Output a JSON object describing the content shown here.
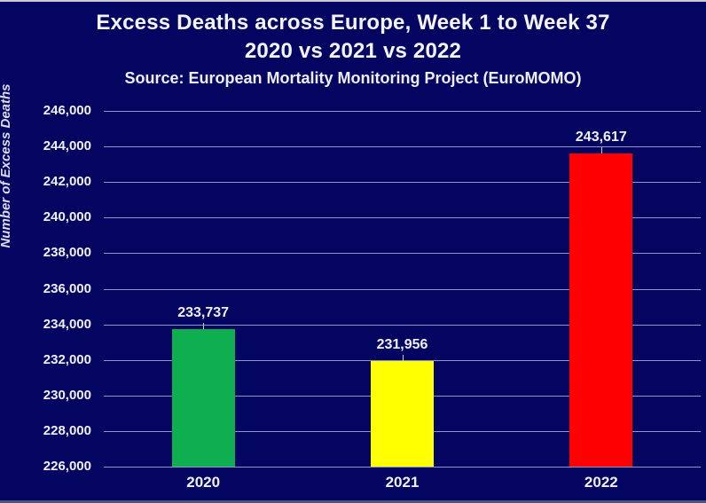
{
  "page": {
    "title_line1": "Excess Deaths across Europe, Week 1 to Week 37",
    "title_line2": "2020 vs 2021 vs 2022",
    "source_line": "Source: European Mortality Monitoring Project (EuroMOMO)"
  },
  "chart_data": {
    "type": "bar",
    "title": "Excess Deaths across Europe, Week 1 to Week 37",
    "subtitle": "2020 vs 2021 vs 2022",
    "source": "Source: European Mortality Monitoring Project (EuroMOMO)",
    "categories": [
      "2020",
      "2021",
      "2022"
    ],
    "values": [
      233737,
      231956,
      243617
    ],
    "value_labels": [
      "233,737",
      "231,956",
      "243,617"
    ],
    "bar_colors": [
      "#0FAE51",
      "#FFFF00",
      "#FF0000"
    ],
    "xlabel": "",
    "ylabel": "Number of Excess Deaths",
    "ylim": [
      226000,
      246000
    ],
    "ytick_step": 2000,
    "ytick_labels": [
      "226,000",
      "228,000",
      "230,000",
      "232,000",
      "234,000",
      "236,000",
      "238,000",
      "240,000",
      "242,000",
      "244,000",
      "246,000"
    ],
    "grid": true,
    "legend": false,
    "colors": {
      "background": "#030560",
      "gridline": "#8E97C4",
      "text": "#F0F0FA",
      "top_border": "#C9C9D6",
      "bottom_border": "#4A5583"
    }
  }
}
